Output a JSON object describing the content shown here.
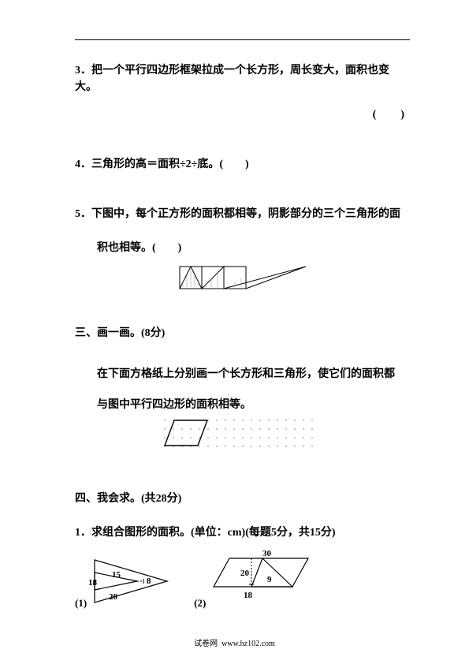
{
  "q3": {
    "number": "3．",
    "text": "把一个平行四边形框架拉成一个长方形，周长变大，面积也变大。",
    "paren": "(　　)"
  },
  "q4": {
    "number": "4．",
    "text": "三角形的高＝面积÷2÷底。(　　)"
  },
  "q5": {
    "number": "5．",
    "text_a": "下图中，每个正方形的面积都相等，阴影部分的三个三角形的面",
    "text_b": "积也相等。(　　)",
    "fig": {
      "stroke": "#000000",
      "fill": "#ffffff",
      "hatch": "#000000"
    }
  },
  "sec3": {
    "head": "三、画一画。(8分)",
    "line1": "在下面方格纸上分别画一个长方形和三角形，使它们的面积都",
    "line2": "与图中平行四边形的面积相等。",
    "fig": {
      "dot_color": "#808080",
      "shape_stroke": "#000000",
      "cols": 18,
      "rows": 4,
      "cell": 11
    }
  },
  "sec4": {
    "head": "四、我会求。(共28分)",
    "q1": {
      "number": "1．",
      "text": "求组合图形的面积。(单位：cm)(每题5分，共15分)"
    },
    "sub1_label": "(1)",
    "sub2_label": "(2)",
    "fig1": {
      "labels": {
        "l18": "18",
        "l15": "15",
        "l8": "8",
        "l20": "20"
      },
      "stroke": "#000000"
    },
    "fig2": {
      "labels": {
        "l30": "30",
        "l20": "20",
        "l9": "9",
        "l18": "18"
      },
      "stroke": "#000000"
    }
  },
  "footer": {
    "site_label": "试卷网",
    "url": "www.hz102.com"
  }
}
